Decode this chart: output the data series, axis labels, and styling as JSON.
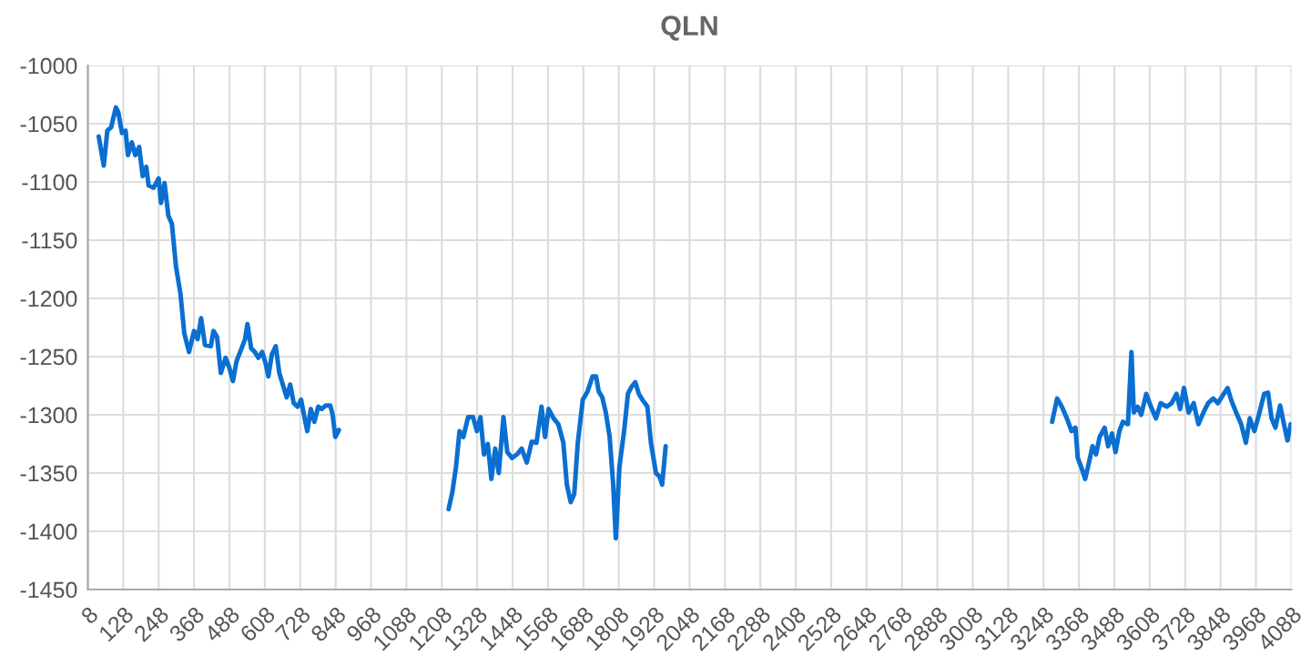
{
  "chart_data": {
    "type": "line",
    "title": "QLN",
    "xlim": [
      8,
      4088
    ],
    "xticks": [
      8,
      128,
      248,
      368,
      488,
      608,
      728,
      848,
      968,
      1088,
      1208,
      1328,
      1448,
      1568,
      1688,
      1808,
      1928,
      2048,
      2168,
      2288,
      2408,
      2528,
      2648,
      2768,
      2888,
      3008,
      3128,
      3248,
      3368,
      3488,
      3608,
      3728,
      3848,
      3968,
      4088
    ],
    "ylim": [
      -1450,
      -1000
    ],
    "yticks": [
      -1450,
      -1400,
      -1350,
      -1300,
      -1250,
      -1200,
      -1150,
      -1100,
      -1050,
      -1000
    ],
    "grid": true,
    "marker": "none",
    "line_style": "solid",
    "series": [
      {
        "color": "#0a6fd1",
        "x": [
          45,
          62,
          74,
          87,
          103,
          111,
          124,
          136,
          144,
          157,
          169,
          182,
          194,
          206,
          214,
          231,
          248,
          256,
          268,
          281,
          293,
          307,
          322,
          335,
          351,
          368,
          380,
          392,
          405,
          425,
          434,
          446,
          459,
          475,
          487,
          500,
          512,
          529,
          541,
          549,
          562,
          574,
          586,
          599,
          611,
          620,
          632,
          645,
          657,
          669,
          682,
          694,
          706,
          719,
          731,
          743,
          752,
          764,
          776,
          789,
          801,
          814,
          830,
          838,
          847,
          859,
          1000,
          1231,
          1244,
          1256,
          1268,
          1281,
          1297,
          1314,
          1327,
          1339,
          1351,
          1364,
          1376,
          1389,
          1401,
          1417,
          1430,
          1446,
          1463,
          1479,
          1496,
          1513,
          1529,
          1546,
          1558,
          1570,
          1587,
          1603,
          1620,
          1632,
          1645,
          1657,
          1669,
          1686,
          1702,
          1719,
          1731,
          1740,
          1752,
          1764,
          1777,
          1789,
          1798,
          1810,
          1826,
          1839,
          1851,
          1864,
          1876,
          1888,
          1905,
          1917,
          1934,
          1946,
          1955,
          1967,
          2500,
          3277,
          3294,
          3310,
          3327,
          3343,
          3356,
          3364,
          3376,
          3389,
          3401,
          3414,
          3426,
          3438,
          3455,
          3467,
          3480,
          3492,
          3505,
          3517,
          3534,
          3546,
          3554,
          3567,
          3579,
          3596,
          3612,
          3629,
          3645,
          3666,
          3682,
          3699,
          3711,
          3724,
          3740,
          3757,
          3773,
          3790,
          3806,
          3823,
          3839,
          3859,
          3872,
          3885,
          3901,
          3918,
          3934,
          3947,
          3963,
          3980,
          3996,
          4009,
          4021,
          4034,
          4050,
          4063,
          4075,
          4086
        ],
        "values": [
          -1061,
          -1086,
          -1056,
          -1053,
          -1036,
          -1040,
          -1058,
          -1056,
          -1077,
          -1066,
          -1077,
          -1070,
          -1095,
          -1087,
          -1103,
          -1105,
          -1097,
          -1118,
          -1101,
          -1129,
          -1136,
          -1173,
          -1196,
          -1230,
          -1246,
          -1228,
          -1235,
          -1217,
          -1240,
          -1241,
          -1228,
          -1233,
          -1264,
          -1251,
          -1259,
          -1271,
          -1254,
          -1243,
          -1235,
          -1222,
          -1243,
          -1246,
          -1251,
          -1246,
          -1256,
          -1267,
          -1248,
          -1241,
          -1264,
          -1274,
          -1285,
          -1274,
          -1290,
          -1293,
          -1287,
          -1303,
          -1314,
          -1295,
          -1306,
          -1293,
          -1295,
          -1292,
          -1292,
          -1300,
          -1319,
          -1313,
          null,
          -1381,
          -1366,
          -1345,
          -1314,
          -1319,
          -1302,
          -1302,
          -1314,
          -1302,
          -1334,
          -1325,
          -1355,
          -1329,
          -1350,
          -1302,
          -1332,
          -1337,
          -1334,
          -1329,
          -1341,
          -1323,
          -1324,
          -1293,
          -1319,
          -1295,
          -1303,
          -1308,
          -1324,
          -1360,
          -1375,
          -1368,
          -1324,
          -1287,
          -1280,
          -1267,
          -1267,
          -1280,
          -1285,
          -1298,
          -1319,
          -1360,
          -1406,
          -1345,
          -1314,
          -1282,
          -1276,
          -1272,
          -1282,
          -1287,
          -1293,
          -1324,
          -1350,
          -1353,
          -1360,
          -1327,
          null,
          -1306,
          -1286,
          -1293,
          -1303,
          -1314,
          -1311,
          -1337,
          -1345,
          -1355,
          -1342,
          -1327,
          -1334,
          -1319,
          -1311,
          -1327,
          -1316,
          -1332,
          -1314,
          -1306,
          -1308,
          -1246,
          -1298,
          -1293,
          -1300,
          -1282,
          -1293,
          -1303,
          -1290,
          -1293,
          -1290,
          -1282,
          -1295,
          -1277,
          -1298,
          -1290,
          -1308,
          -1298,
          -1290,
          -1286,
          -1290,
          -1282,
          -1277,
          -1288,
          -1298,
          -1308,
          -1324,
          -1303,
          -1314,
          -1298,
          -1282,
          -1281,
          -1303,
          -1311,
          -1292,
          -1308,
          -1322,
          -1308
        ]
      }
    ]
  }
}
